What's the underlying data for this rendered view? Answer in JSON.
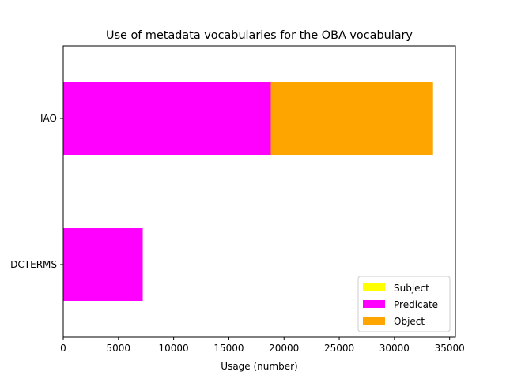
{
  "chart_data": {
    "type": "bar",
    "orientation": "horizontal",
    "stacked": true,
    "title": "Use of metadata vocabularies for the OBA vocabulary",
    "xlabel": "Usage (number)",
    "ylabel": "",
    "categories": [
      "DCTERMS",
      "IAO"
    ],
    "series": [
      {
        "name": "Subject",
        "color": "#ffff00",
        "values": [
          0,
          0
        ]
      },
      {
        "name": "Predicate",
        "color": "#ff00ff",
        "values": [
          7200,
          18800
        ]
      },
      {
        "name": "Object",
        "color": "#ffa500",
        "values": [
          0,
          14700
        ]
      }
    ],
    "xlim": [
      0,
      35525
    ],
    "xticks": [
      0,
      5000,
      10000,
      15000,
      20000,
      25000,
      30000,
      35000
    ],
    "grid": false,
    "legend_position": "lower-right"
  }
}
